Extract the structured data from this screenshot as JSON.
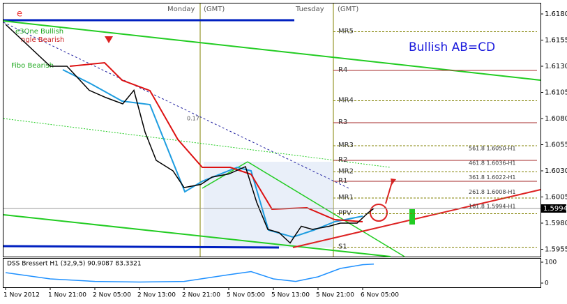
{
  "chart_data": {
    "type": "line",
    "title": "Bullish AB=CD",
    "x": [
      0,
      8,
      11,
      15,
      18,
      21,
      23,
      25,
      27,
      30,
      32,
      35,
      37,
      40,
      43,
      45,
      47,
      49,
      51,
      53,
      55,
      58,
      60,
      63,
      65,
      66
    ],
    "values": [
      1.617,
      1.613,
      1.613,
      1.6107,
      1.61,
      1.6094,
      1.6107,
      1.6067,
      1.604,
      1.603,
      1.6014,
      1.6017,
      1.6024,
      1.6027,
      1.6034,
      1.6,
      1.5974,
      1.5971,
      1.5961,
      1.5977,
      1.5974,
      1.5977,
      1.598,
      1.598,
      1.599,
      1.5994
    ],
    "color": "#000000",
    "xlim": [
      0,
      96
    ],
    "ylim": [
      1.5948,
      1.619
    ],
    "yticks": [
      {
        "value": 1.618,
        "label": "1.6180"
      },
      1.6155,
      {
        "value": 1.613,
        "label": "1.6130"
      },
      1.6105,
      {
        "value": 1.608,
        "label": "1.6080"
      },
      1.6055,
      {
        "value": 1.603,
        "label": "1.6030"
      },
      1.6005,
      {
        "value": 1.598,
        "label": "1.5980"
      },
      1.5955
    ],
    "current_price": 1.5994,
    "x_labels": [
      "1 Nov 2012",
      "1 Nov 21:00",
      "2 Nov 05:00",
      "2 Nov 13:00",
      "2 Nov 21:00",
      "5 Nov 05:00",
      "5 Nov 13:00",
      "5 Nov 21:00",
      "6 Nov 05:00"
    ],
    "session_labels": [
      "Monday",
      "(GMT)",
      "Tuesday",
      "(GMT)"
    ],
    "levels": [
      {
        "label": "MR5",
        "value": 1.6163
      },
      {
        "label": "R4",
        "value": 1.6126
      },
      {
        "label": "MR4",
        "value": 1.6097
      },
      {
        "label": "R3",
        "value": 1.6076
      },
      {
        "label": "MR3",
        "value": 1.6054
      },
      {
        "label": "R2",
        "value": 1.604
      },
      {
        "label": "MR2",
        "value": 1.6029
      },
      {
        "label": "R1",
        "value": 1.602
      },
      {
        "label": "MR1",
        "value": 1.6004
      },
      {
        "label": "PPV",
        "value": 1.5989
      },
      {
        "label": "S1",
        "value": 1.5957
      }
    ],
    "fibo_labels": [
      "561.8 1.6050-H1",
      "461.8 1.6036-H1",
      "361.8 1.6022-H1",
      "261.8 1.6008-H1",
      "161.8 1.5994-H1"
    ],
    "annotations": [
      "e",
      "e3One Bullish",
      "ngle Bearish",
      "Fibo Bearish",
      "0.17"
    ],
    "indicator": {
      "title": "DSS Bressert H1 (32,9,5) 90.9087 83.3321",
      "x": [
        0,
        8,
        16,
        24,
        32,
        40,
        44,
        48,
        52,
        56,
        60,
        64,
        66
      ],
      "values": [
        50,
        20,
        8,
        5,
        8,
        40,
        55,
        20,
        8,
        30,
        70,
        88,
        91
      ],
      "color": "#1e90ff",
      "ylim": [
        0,
        100
      ],
      "yticks": [
        100,
        0
      ]
    }
  }
}
